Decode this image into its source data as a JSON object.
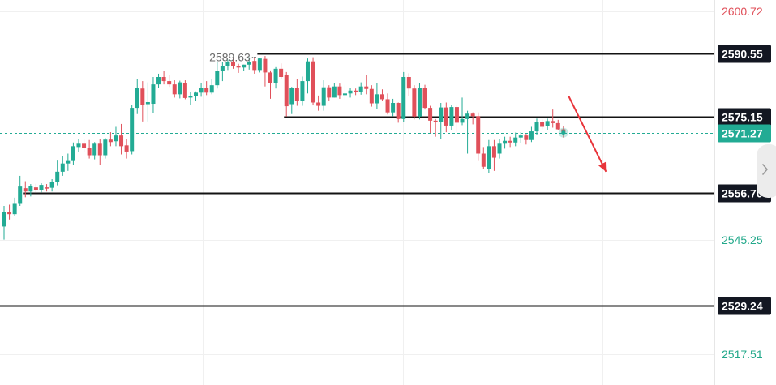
{
  "chart_data": {
    "type": "candlestick",
    "ylim": [
      2510,
      2603.5
    ],
    "grid": true,
    "y_ticks": [
      {
        "value": 2600.72,
        "label": "2600.72",
        "color": "#e0505a"
      },
      {
        "value": 2545.25,
        "label": "2545.25",
        "color": "#22a88a"
      },
      {
        "value": 2517.51,
        "label": "2517.51",
        "color": "#22a88a"
      }
    ],
    "current_price": {
      "value": 2571.27,
      "label": "2571.27",
      "color": "#22ab94"
    },
    "levels": [
      {
        "value": 2590.55,
        "label": "2590.55",
        "from_bar": 48
      },
      {
        "value": 2575.15,
        "label": "2575.15",
        "from_bar": 53
      },
      {
        "value": 2556.7,
        "label": "2556.70",
        "from_bar": 4
      },
      {
        "value": 2529.24,
        "label": "2529.24",
        "from_bar": 0
      }
    ],
    "high_marker": {
      "value": 2589.63,
      "label": "2589.63",
      "bar": 47
    },
    "arrow": {
      "from_bar": 106,
      "from_value": 2580.1,
      "to_bar": 113,
      "to_value": 2561.8,
      "color": "#e8343a"
    },
    "up_color": "#22ab94",
    "down_color": "#e0505a",
    "candles": [
      [
        2548.5,
        2553.5,
        2545.3,
        2552.0
      ],
      [
        2552.0,
        2553.8,
        2550.2,
        2551.5
      ],
      [
        2551.5,
        2555.5,
        2551.0,
        2554.0
      ],
      [
        2554.0,
        2560.8,
        2553.5,
        2558.2
      ],
      [
        2557.8,
        2559.5,
        2555.6,
        2557.0
      ],
      [
        2557.0,
        2558.8,
        2555.8,
        2558.4
      ],
      [
        2558.0,
        2558.9,
        2556.6,
        2557.3
      ],
      [
        2557.4,
        2559.0,
        2556.8,
        2558.6
      ],
      [
        2558.0,
        2558.8,
        2557.0,
        2557.7
      ],
      [
        2557.9,
        2560.0,
        2557.0,
        2559.3
      ],
      [
        2559.4,
        2564.5,
        2558.5,
        2561.8
      ],
      [
        2561.8,
        2565.6,
        2560.8,
        2563.8
      ],
      [
        2563.8,
        2566.2,
        2562.0,
        2564.4
      ],
      [
        2564.4,
        2568.9,
        2563.5,
        2568.0
      ],
      [
        2567.8,
        2569.8,
        2566.5,
        2568.6
      ],
      [
        2568.6,
        2569.8,
        2566.5,
        2567.5
      ],
      [
        2567.5,
        2569.5,
        2565.0,
        2565.8
      ],
      [
        2565.8,
        2569.0,
        2564.8,
        2568.6
      ],
      [
        2568.6,
        2569.8,
        2563.5,
        2565.8
      ],
      [
        2565.8,
        2570.0,
        2565.0,
        2569.6
      ],
      [
        2569.6,
        2571.4,
        2568.0,
        2569.0
      ],
      [
        2569.2,
        2572.7,
        2568.0,
        2570.6
      ],
      [
        2570.6,
        2573.4,
        2566.0,
        2568.0
      ],
      [
        2568.2,
        2569.8,
        2565.0,
        2566.7
      ],
      [
        2566.8,
        2578.0,
        2566.0,
        2577.3
      ],
      [
        2577.3,
        2584.3,
        2575.8,
        2582.1
      ],
      [
        2582.0,
        2583.8,
        2574.0,
        2578.1
      ],
      [
        2578.2,
        2583.5,
        2574.0,
        2578.7
      ],
      [
        2578.3,
        2584.8,
        2576.0,
        2583.0
      ],
      [
        2583.0,
        2585.6,
        2582.2,
        2584.8
      ],
      [
        2584.8,
        2586.3,
        2583.0,
        2583.8
      ],
      [
        2583.8,
        2585.2,
        2582.4,
        2583.0
      ],
      [
        2583.0,
        2584.0,
        2579.8,
        2580.6
      ],
      [
        2580.6,
        2583.9,
        2579.6,
        2583.5
      ],
      [
        2583.4,
        2584.0,
        2579.4,
        2579.7
      ],
      [
        2579.8,
        2581.2,
        2578.0,
        2580.1
      ],
      [
        2580.1,
        2581.3,
        2578.9,
        2581.0
      ],
      [
        2581.0,
        2583.3,
        2580.0,
        2582.2
      ],
      [
        2582.2,
        2583.8,
        2580.4,
        2581.0
      ],
      [
        2581.0,
        2584.2,
        2580.6,
        2582.8
      ],
      [
        2582.8,
        2588.5,
        2582.0,
        2586.2
      ],
      [
        2586.2,
        2588.5,
        2583.8,
        2587.5
      ],
      [
        2587.4,
        2589.0,
        2586.5,
        2588.4
      ],
      [
        2588.4,
        2589.5,
        2586.8,
        2587.5
      ],
      [
        2587.5,
        2588.0,
        2585.8,
        2587.1
      ],
      [
        2587.1,
        2587.8,
        2586.2,
        2587.8
      ],
      [
        2587.8,
        2589.6,
        2586.6,
        2588.4
      ],
      [
        2588.7,
        2589.6,
        2585.6,
        2586.5
      ],
      [
        2586.5,
        2589.5,
        2585.9,
        2589.3
      ],
      [
        2589.2,
        2589.9,
        2582.5,
        2585.9
      ],
      [
        2585.9,
        2586.4,
        2579.5,
        2583.4
      ],
      [
        2583.4,
        2587.2,
        2582.0,
        2586.8
      ],
      [
        2586.8,
        2588.1,
        2584.3,
        2584.8
      ],
      [
        2585.2,
        2586.0,
        2575.2,
        2577.7
      ],
      [
        2578.2,
        2582.4,
        2575.8,
        2582.2
      ],
      [
        2582.2,
        2584.3,
        2577.8,
        2579.0
      ],
      [
        2579.0,
        2584.9,
        2577.8,
        2583.8
      ],
      [
        2583.8,
        2589.3,
        2580.8,
        2588.6
      ],
      [
        2588.6,
        2589.6,
        2577.9,
        2578.6
      ],
      [
        2578.6,
        2580.3,
        2576.6,
        2577.8
      ],
      [
        2577.8,
        2584.0,
        2576.6,
        2582.3
      ],
      [
        2582.3,
        2582.8,
        2579.1,
        2579.8
      ],
      [
        2579.8,
        2583.4,
        2579.8,
        2582.5
      ],
      [
        2582.5,
        2583.2,
        2579.5,
        2580.4
      ],
      [
        2580.4,
        2583.0,
        2579.3,
        2580.8
      ],
      [
        2580.8,
        2582.1,
        2579.8,
        2581.5
      ],
      [
        2581.5,
        2582.0,
        2580.4,
        2581.1
      ],
      [
        2581.1,
        2583.5,
        2580.5,
        2582.5
      ],
      [
        2582.5,
        2585.2,
        2580.6,
        2581.9
      ],
      [
        2581.9,
        2582.8,
        2577.6,
        2578.4
      ],
      [
        2578.4,
        2583.4,
        2577.1,
        2580.6
      ],
      [
        2580.6,
        2581.8,
        2579.1,
        2579.4
      ],
      [
        2579.4,
        2580.8,
        2575.7,
        2576.2
      ],
      [
        2576.2,
        2579.5,
        2575.3,
        2578.5
      ],
      [
        2578.5,
        2578.6,
        2573.7,
        2574.6
      ],
      [
        2574.6,
        2586.0,
        2573.9,
        2584.8
      ],
      [
        2584.8,
        2585.7,
        2580.2,
        2582.0
      ],
      [
        2582.0,
        2582.8,
        2574.5,
        2575.2
      ],
      [
        2575.2,
        2583.3,
        2574.5,
        2582.2
      ],
      [
        2582.2,
        2582.9,
        2576.9,
        2577.3
      ],
      [
        2577.3,
        2577.8,
        2571.2,
        2574.2
      ],
      [
        2574.2,
        2574.6,
        2570.3,
        2573.9
      ],
      [
        2573.9,
        2578.5,
        2569.8,
        2577.4
      ],
      [
        2577.4,
        2578.6,
        2571.4,
        2573.0
      ],
      [
        2573.0,
        2578.0,
        2571.9,
        2577.5
      ],
      [
        2577.5,
        2578.0,
        2571.4,
        2573.7
      ],
      [
        2573.7,
        2579.8,
        2573.1,
        2574.6
      ],
      [
        2574.6,
        2576.6,
        2566.2,
        2575.9
      ],
      [
        2575.9,
        2576.2,
        2573.3,
        2575.3
      ],
      [
        2575.3,
        2576.2,
        2564.4,
        2566.2
      ],
      [
        2566.2,
        2567.8,
        2562.5,
        2563.0
      ],
      [
        2562.5,
        2569.5,
        2561.5,
        2568.0
      ],
      [
        2568.0,
        2569.5,
        2562.0,
        2565.2
      ],
      [
        2566.2,
        2569.7,
        2565.0,
        2568.6
      ],
      [
        2568.6,
        2570.3,
        2567.4,
        2569.3
      ],
      [
        2569.3,
        2570.3,
        2567.8,
        2568.9
      ],
      [
        2568.9,
        2571.3,
        2568.0,
        2570.1
      ],
      [
        2570.1,
        2571.4,
        2568.8,
        2570.6
      ],
      [
        2570.6,
        2571.0,
        2568.4,
        2569.5
      ],
      [
        2569.5,
        2572.7,
        2569.0,
        2571.6
      ],
      [
        2571.6,
        2574.7,
        2570.8,
        2573.9
      ],
      [
        2573.9,
        2574.5,
        2572.1,
        2572.7
      ],
      [
        2572.8,
        2574.7,
        2571.9,
        2574.1
      ],
      [
        2574.1,
        2576.9,
        2572.5,
        2573.6
      ],
      [
        2573.6,
        2574.4,
        2572.0,
        2572.1
      ],
      [
        2572.1,
        2572.8,
        2570.1,
        2571.3
      ]
    ]
  }
}
